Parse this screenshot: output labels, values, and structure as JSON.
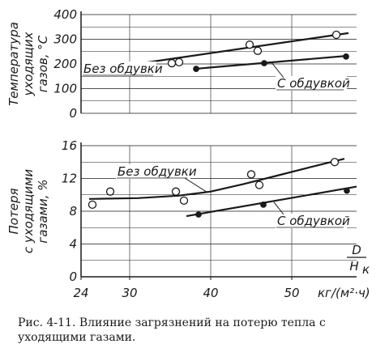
{
  "caption": "Рис. 4-11. Влияние загрязнений на потерю тепла с уходящими газами.",
  "colors": {
    "ink": "#1a1a1a",
    "background": "#ffffff",
    "grid": "#1a1a1a"
  },
  "chart_data": [
    {
      "type": "line",
      "title": "",
      "ylabel": [
        "Температура",
        "уходящих",
        "газов, °С"
      ],
      "ylim": [
        0,
        400
      ],
      "yticks": [
        0,
        100,
        200,
        300,
        400
      ],
      "xlim": [
        24,
        58
      ],
      "grid": true,
      "series": [
        {
          "name": "Без обдувки",
          "marker": "open-circle",
          "line_x": [
            25,
            57
          ],
          "line_y": [
            172,
            325
          ],
          "points": [
            {
              "x": 25.4,
              "y": 170
            },
            {
              "x": 27.2,
              "y": 172
            },
            {
              "x": 35.2,
              "y": 203
            },
            {
              "x": 36.1,
              "y": 207
            },
            {
              "x": 44.8,
              "y": 278
            },
            {
              "x": 45.8,
              "y": 253
            },
            {
              "x": 55.5,
              "y": 318
            }
          ]
        },
        {
          "name": "С обдувкой",
          "marker": "filled-circle",
          "line_x": [
            38,
            57
          ],
          "line_y": [
            180,
            233
          ],
          "points": [
            {
              "x": 38.2,
              "y": 180
            },
            {
              "x": 46.6,
              "y": 203
            },
            {
              "x": 56.7,
              "y": 230
            }
          ]
        }
      ]
    },
    {
      "type": "line",
      "title": "",
      "ylabel": [
        "Потеря",
        "с уходящими",
        "газами, %"
      ],
      "ylim": [
        0,
        16
      ],
      "yticks": [
        0,
        4,
        8,
        12,
        16
      ],
      "xlim": [
        24,
        58
      ],
      "xticks": [
        24,
        30,
        40,
        50
      ],
      "xunit": "кг/(м²·ч)",
      "xlabel_fraction": {
        "numerator": "D",
        "denominator": "H",
        "subscript": "к"
      },
      "grid": true,
      "series": [
        {
          "name": "Без обдувки",
          "marker": "open-circle",
          "line_x": [
            25,
            31,
            36,
            40,
            44,
            48,
            52,
            56.5
          ],
          "line_y": [
            9.5,
            9.6,
            9.9,
            10.4,
            11.3,
            12.3,
            13.3,
            14.4
          ],
          "points": [
            {
              "x": 25.4,
              "y": 8.8
            },
            {
              "x": 27.6,
              "y": 10.4
            },
            {
              "x": 35.7,
              "y": 10.4
            },
            {
              "x": 36.7,
              "y": 9.3
            },
            {
              "x": 45,
              "y": 12.5
            },
            {
              "x": 46,
              "y": 11.2
            },
            {
              "x": 55.3,
              "y": 14
            }
          ]
        },
        {
          "name": "С обдувкой",
          "marker": "filled-circle",
          "line_x": [
            37,
            58
          ],
          "line_y": [
            7.4,
            11
          ],
          "points": [
            {
              "x": 38.5,
              "y": 7.6
            },
            {
              "x": 46.5,
              "y": 8.8
            },
            {
              "x": 56.8,
              "y": 10.5
            }
          ]
        }
      ]
    }
  ]
}
